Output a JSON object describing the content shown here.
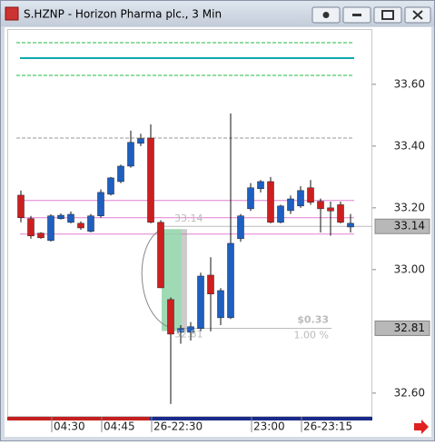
{
  "window": {
    "title": "S.HZNP - Horizon Pharma plc., 3 Min"
  },
  "chart_data": {
    "type": "candlestick",
    "categories": [
      null,
      null,
      null,
      "04:30",
      null,
      null,
      null,
      null,
      "04:45",
      null,
      null,
      null,
      null,
      "26-22:30",
      null,
      null,
      null,
      null,
      null,
      null,
      null,
      null,
      null,
      "23:00",
      null,
      null,
      null,
      null,
      "26-23:15",
      null,
      null,
      null,
      null,
      null
    ],
    "open": [
      33.241,
      33.165,
      33.118,
      33.094,
      33.165,
      33.153,
      33.15,
      33.124,
      33.174,
      33.244,
      33.285,
      33.335,
      33.409,
      33.426,
      33.153,
      32.903,
      32.797,
      32.797,
      32.809,
      32.982,
      32.844,
      32.844,
      33.1,
      33.197,
      33.262,
      33.285,
      33.153,
      33.191,
      33.206,
      33.265,
      33.221,
      33.2,
      33.21,
      33.138
    ],
    "high": [
      33.256,
      33.174,
      33.121,
      33.179,
      33.182,
      33.188,
      33.156,
      33.18,
      33.26,
      33.3,
      33.34,
      33.45,
      33.44,
      33.47,
      33.16,
      32.91,
      32.82,
      32.83,
      32.99,
      33.04,
      32.94,
      33.506,
      33.18,
      33.28,
      33.29,
      33.3,
      33.21,
      33.24,
      33.27,
      33.29,
      33.23,
      33.22,
      33.22,
      33.18
    ],
    "low": [
      33.153,
      33.1,
      33.1,
      33.091,
      33.162,
      33.15,
      33.129,
      33.12,
      33.168,
      33.24,
      33.28,
      33.33,
      33.4,
      33.15,
      32.94,
      32.565,
      32.76,
      32.77,
      32.8,
      32.8,
      32.82,
      32.84,
      33.09,
      33.19,
      33.25,
      33.15,
      33.15,
      33.18,
      33.2,
      33.21,
      33.12,
      33.11,
      33.15,
      33.12
    ],
    "close": [
      33.168,
      33.109,
      33.103,
      33.174,
      33.176,
      33.179,
      33.135,
      33.174,
      33.25,
      33.297,
      33.335,
      33.412,
      33.424,
      33.153,
      32.941,
      32.791,
      32.809,
      32.815,
      32.979,
      32.921,
      32.932,
      33.085,
      33.174,
      33.265,
      33.285,
      33.153,
      33.206,
      33.229,
      33.256,
      33.218,
      33.197,
      33.19,
      33.153,
      33.15
    ],
    "up_color": "#1f5fbf",
    "down_color": "#cc2020",
    "ylim": [
      32.526,
      33.779
    ],
    "yticks": [
      {
        "value": 33.6,
        "label": "33.60"
      },
      {
        "value": 33.4,
        "label": "33.40"
      },
      {
        "value": 33.2,
        "label": "33.20"
      },
      {
        "value": 33.0,
        "label": "33.00"
      },
      {
        "value": 32.6,
        "label": "32.60"
      }
    ],
    "hlines": [
      {
        "value": 33.735,
        "color": "#22bb44",
        "style": "dashed"
      },
      {
        "value": 33.685,
        "color": "#10a8b0",
        "style": "solid"
      },
      {
        "value": 33.629,
        "color": "#22bb44",
        "style": "dashed"
      },
      {
        "value": 33.426,
        "color": "#999999",
        "style": "dashed"
      },
      {
        "value": 33.224,
        "color": "#e080d0",
        "style": "solid"
      },
      {
        "value": 33.168,
        "color": "#e080d0",
        "style": "solid"
      },
      {
        "value": 33.115,
        "color": "#e080d0",
        "style": "solid"
      }
    ],
    "price_markers": [
      33.14,
      32.81
    ],
    "measure": {
      "from": 33.14,
      "to": 32.81,
      "change_label": "$0.33",
      "pct_label": "1.00 %"
    }
  }
}
